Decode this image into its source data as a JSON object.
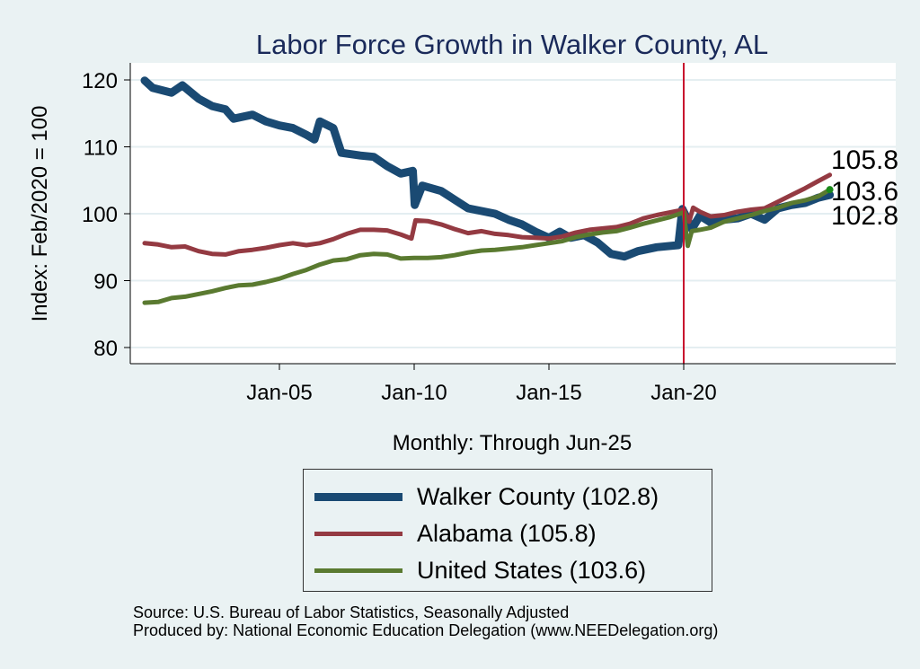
{
  "chart_data": {
    "type": "line",
    "title": "Labor Force Growth in Walker  County, AL",
    "xlabel": "Monthly: Through Jun-25",
    "ylabel": "Index: Feb/2020 = 100",
    "ylim": [
      79,
      122
    ],
    "xlim": [
      1999.5,
      2028.0
    ],
    "yticks": [
      80,
      90,
      100,
      110,
      120
    ],
    "xticks": [
      {
        "value": 2005,
        "label": "Jan-05"
      },
      {
        "value": 2010,
        "label": "Jan-10"
      },
      {
        "value": 2015,
        "label": "Jan-15"
      },
      {
        "value": 2020,
        "label": "Jan-20"
      }
    ],
    "grid": true,
    "reference_line": {
      "x": 2020.0,
      "color": "#c8102e"
    },
    "legend_position": "bottom",
    "series": [
      {
        "name": "Walker  County",
        "legend_label": "Walker  County (102.8)",
        "end_value": "102.8",
        "color": "#1a4a73",
        "width": 9,
        "x": [
          2000.0,
          2000.3,
          2001.0,
          2001.4,
          2002.0,
          2002.5,
          2003.0,
          2003.3,
          2004.0,
          2004.5,
          2005.0,
          2005.5,
          2006.0,
          2006.3,
          2006.5,
          2007.0,
          2007.3,
          2008.0,
          2008.5,
          2009.0,
          2009.5,
          2009.95,
          2010.02,
          2010.3,
          2011.0,
          2011.5,
          2012.0,
          2013.0,
          2013.5,
          2014.0,
          2014.5,
          2015.0,
          2015.4,
          2015.8,
          2016.3,
          2016.8,
          2017.3,
          2017.8,
          2018.3,
          2019.0,
          2019.8,
          2019.95,
          2020.05,
          2020.3,
          2020.6,
          2021.0,
          2021.5,
          2022.0,
          2022.5,
          2023.0,
          2023.5,
          2024.0,
          2024.5,
          2025.0,
          2025.42
        ],
        "values": [
          119.9,
          118.8,
          118.1,
          119.2,
          117.2,
          116.1,
          115.6,
          114.2,
          114.8,
          113.8,
          113.2,
          112.8,
          111.8,
          111.1,
          113.8,
          112.8,
          109.1,
          108.7,
          108.5,
          107.1,
          106.0,
          106.4,
          101.3,
          104.2,
          103.4,
          102.1,
          100.8,
          100.0,
          99.1,
          98.4,
          97.3,
          96.4,
          97.3,
          96.4,
          96.8,
          95.7,
          94.0,
          93.6,
          94.4,
          95.0,
          95.3,
          100.7,
          99.9,
          97.7,
          99.7,
          98.7,
          99.1,
          99.3,
          100.0,
          99.1,
          100.8,
          101.3,
          101.6,
          102.4,
          102.8
        ]
      },
      {
        "name": "Alabama",
        "legend_label": "Alabama (105.8)",
        "end_value": "105.8",
        "color": "#943a42",
        "width": 5,
        "x": [
          2000.0,
          2000.5,
          2001.0,
          2001.5,
          2002.0,
          2002.5,
          2003.0,
          2003.5,
          2004.0,
          2004.5,
          2005.0,
          2005.5,
          2006.0,
          2006.5,
          2007.0,
          2007.5,
          2008.0,
          2008.5,
          2009.0,
          2009.5,
          2009.9,
          2010.05,
          2010.5,
          2011.0,
          2011.5,
          2012.0,
          2012.5,
          2013.0,
          2013.5,
          2014.0,
          2014.5,
          2015.0,
          2015.5,
          2016.0,
          2016.5,
          2017.0,
          2017.5,
          2018.0,
          2018.5,
          2019.0,
          2019.5,
          2020.0,
          2020.2,
          2020.35,
          2020.6,
          2021.0,
          2021.5,
          2022.0,
          2022.5,
          2023.0,
          2023.5,
          2024.0,
          2024.5,
          2025.0,
          2025.42
        ],
        "values": [
          95.6,
          95.4,
          95.0,
          95.1,
          94.4,
          94.0,
          93.9,
          94.4,
          94.6,
          94.9,
          95.3,
          95.6,
          95.3,
          95.6,
          96.2,
          97.0,
          97.6,
          97.6,
          97.5,
          96.9,
          96.3,
          99.0,
          98.9,
          98.4,
          97.7,
          97.1,
          97.4,
          97.0,
          96.8,
          96.5,
          96.4,
          96.3,
          96.6,
          97.2,
          97.6,
          97.8,
          98.0,
          98.5,
          99.3,
          99.8,
          100.2,
          100.6,
          98.8,
          100.9,
          100.3,
          99.6,
          99.8,
          100.3,
          100.6,
          100.8,
          101.8,
          102.8,
          103.8,
          104.9,
          105.8
        ]
      },
      {
        "name": "United States",
        "legend_label": "United States (103.6)",
        "end_value": "103.6",
        "color": "#5a7a30",
        "width": 5,
        "x": [
          2000.0,
          2000.5,
          2001.0,
          2001.5,
          2002.0,
          2002.5,
          2003.0,
          2003.5,
          2004.0,
          2004.5,
          2005.0,
          2005.5,
          2006.0,
          2006.5,
          2007.0,
          2007.5,
          2008.0,
          2008.5,
          2009.0,
          2009.5,
          2010.0,
          2010.5,
          2011.0,
          2011.5,
          2012.0,
          2012.5,
          2013.0,
          2013.5,
          2014.0,
          2014.5,
          2015.0,
          2015.5,
          2016.0,
          2016.5,
          2017.0,
          2017.5,
          2018.0,
          2018.5,
          2019.0,
          2019.5,
          2020.0,
          2020.15,
          2020.3,
          2020.6,
          2021.0,
          2021.5,
          2022.0,
          2022.5,
          2023.0,
          2023.5,
          2024.0,
          2024.5,
          2025.0,
          2025.42
        ],
        "values": [
          86.7,
          86.8,
          87.4,
          87.6,
          88.0,
          88.4,
          88.9,
          89.3,
          89.4,
          89.8,
          90.3,
          91.0,
          91.6,
          92.4,
          93.0,
          93.2,
          93.8,
          94.0,
          93.9,
          93.3,
          93.4,
          93.4,
          93.5,
          93.8,
          94.2,
          94.5,
          94.6,
          94.8,
          95.0,
          95.3,
          95.6,
          95.9,
          96.5,
          96.9,
          97.2,
          97.4,
          97.9,
          98.5,
          99.0,
          99.5,
          100.2,
          95.2,
          97.4,
          97.6,
          97.9,
          98.8,
          99.3,
          99.8,
          100.4,
          100.9,
          101.6,
          102.0,
          102.6,
          103.6
        ]
      }
    ],
    "end_labels": [
      "105.8",
      "103.6",
      "102.8"
    ]
  },
  "footer": {
    "source": "Source: U.S. Bureau of Labor Statistics, Seasonally Adjusted",
    "producer": "Produced by: National Economic Education Delegation (www.NEEDelegation.org)"
  }
}
